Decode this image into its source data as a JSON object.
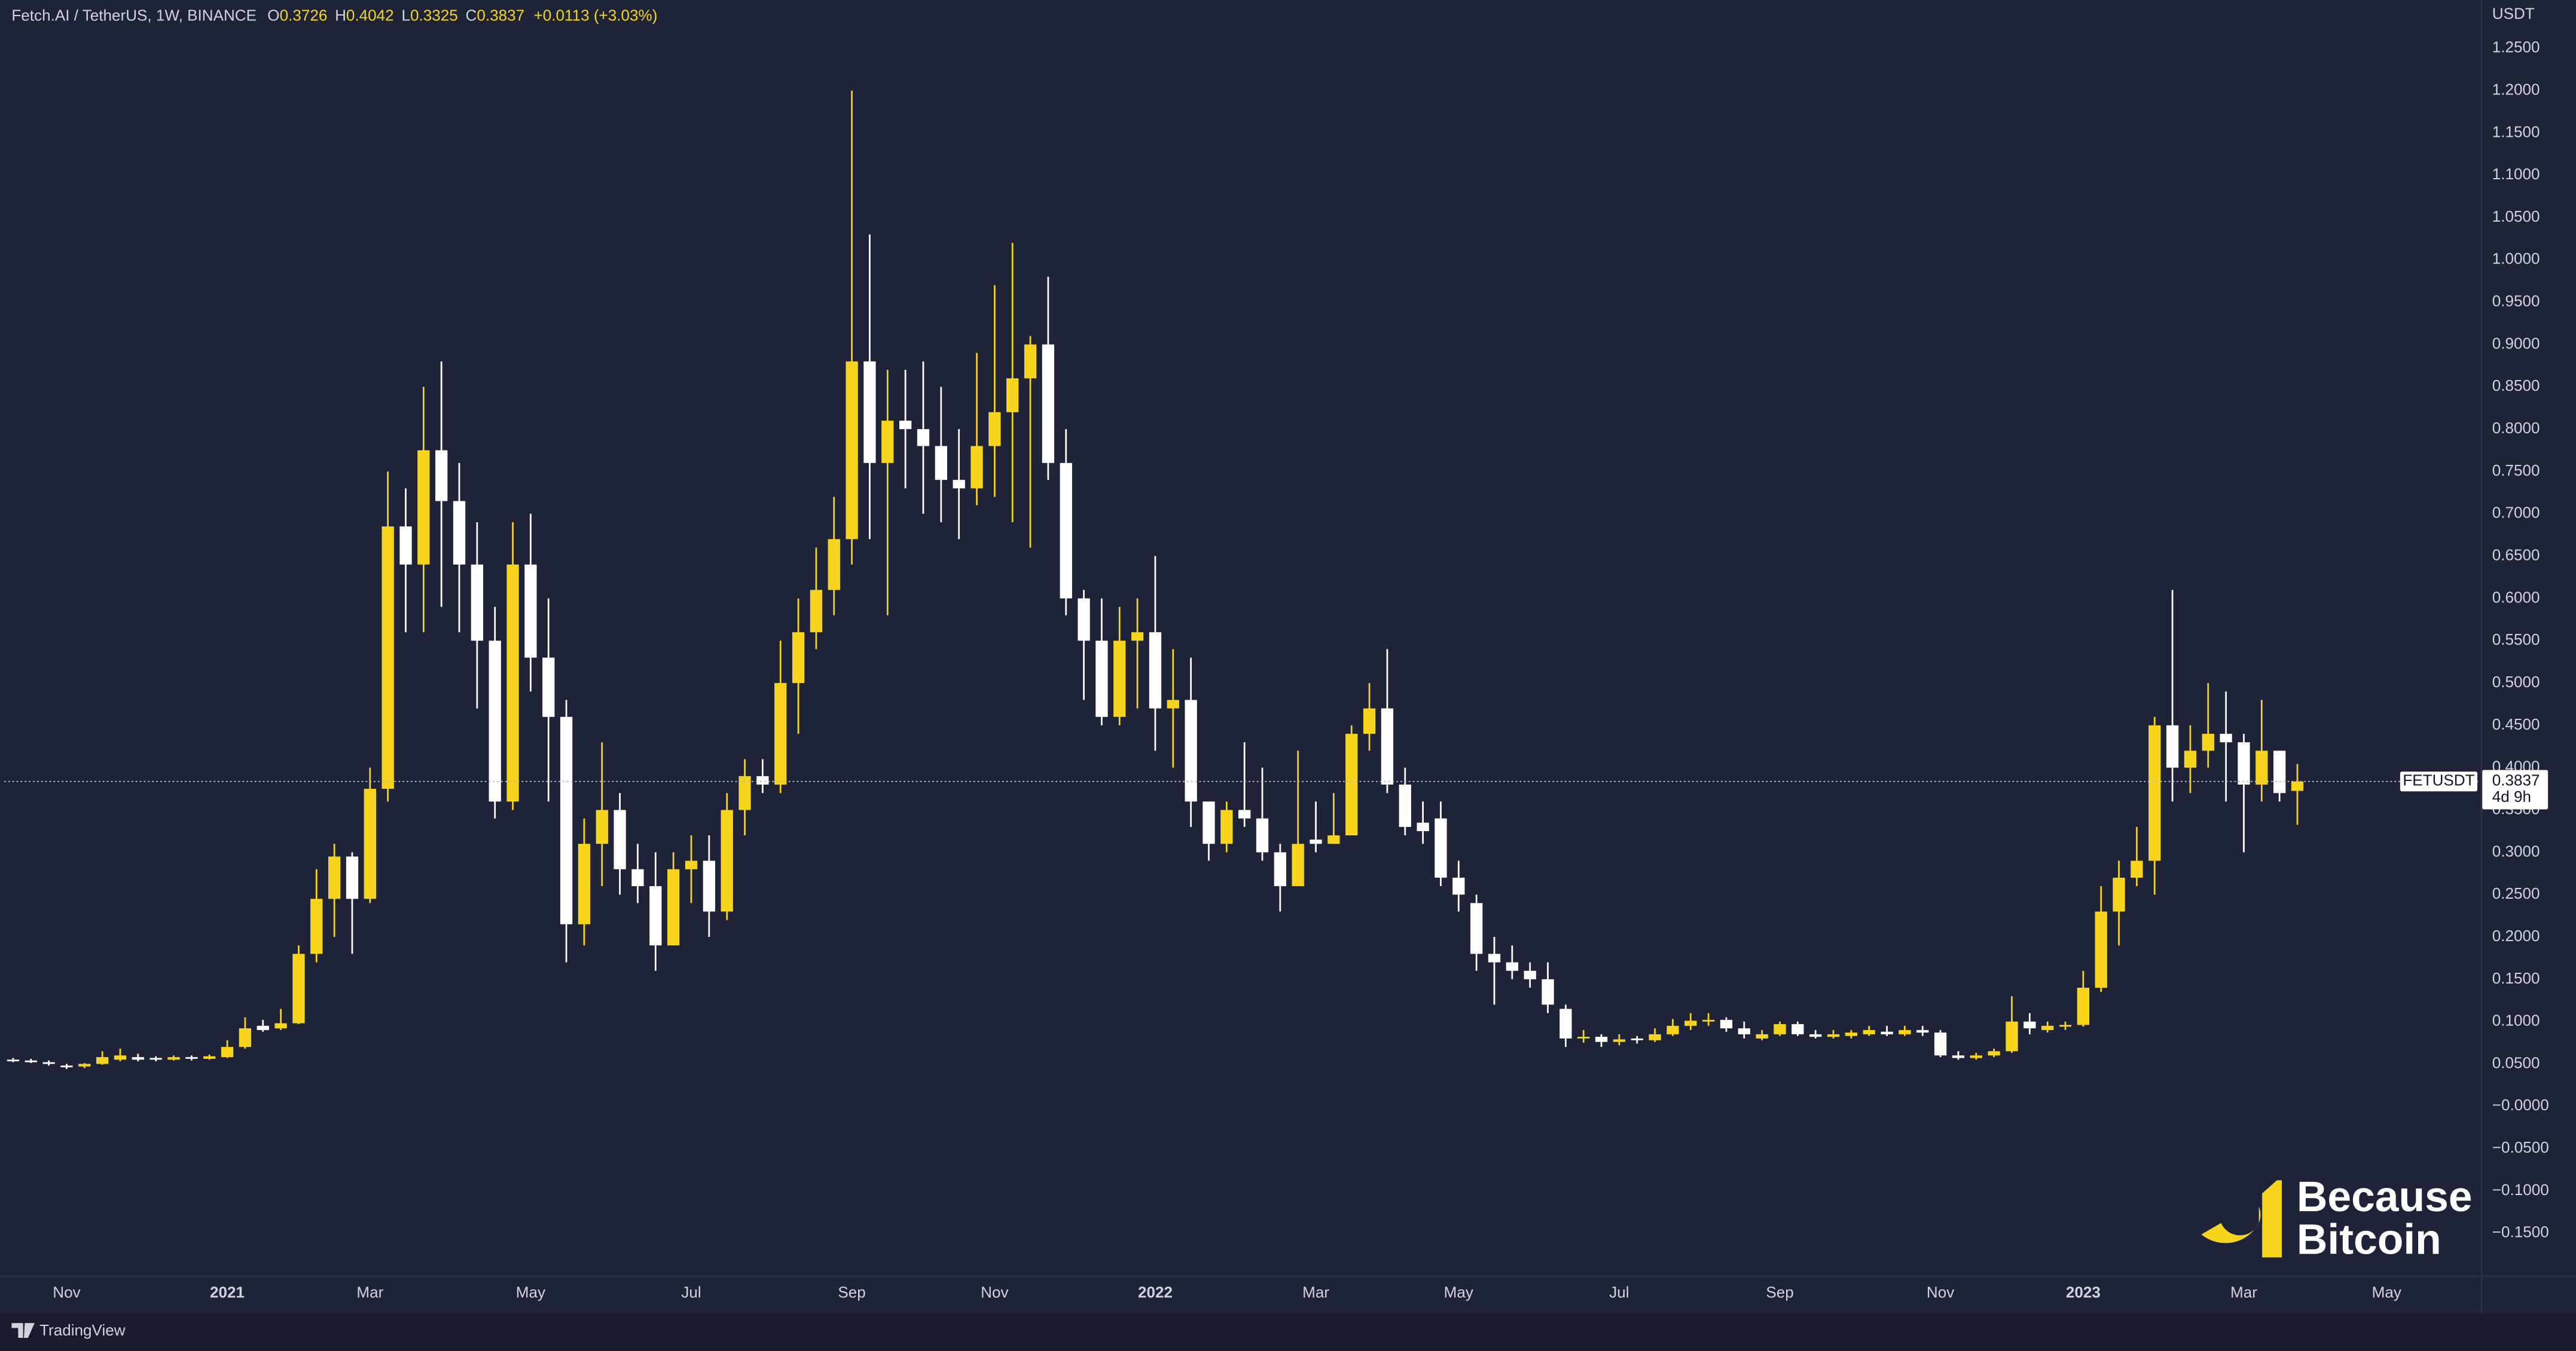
{
  "chart_data": {
    "type": "candlestick",
    "header": {
      "symbol": "Fetch.AI / TetherUS, 1W, BINANCE",
      "items": [
        {
          "key": "O",
          "value": "0.3726"
        },
        {
          "key": "H",
          "value": "0.4042"
        },
        {
          "key": "L",
          "value": "0.3325"
        },
        {
          "key": "C",
          "value": "0.3837"
        }
      ],
      "change": "+0.0113 (+3.03%)"
    },
    "y_axis_label": "USDT",
    "symbol_label": "FETUSDT",
    "countdown": "4d 9h",
    "up_color": "#f7d51c",
    "down_color": "#ffffff",
    "ylim": [
      -0.2,
      1.307
    ],
    "yticks": [
      {
        "value": 1.25,
        "label": "1.2500"
      },
      {
        "value": 1.2,
        "label": "1.2000"
      },
      {
        "value": 1.15,
        "label": "1.1500"
      },
      {
        "value": 1.1,
        "label": "1.1000"
      },
      {
        "value": 1.05,
        "label": "1.0500"
      },
      {
        "value": 1.0,
        "label": "1.0000"
      },
      {
        "value": 0.95,
        "label": "0.9500"
      },
      {
        "value": 0.9,
        "label": "0.9000"
      },
      {
        "value": 0.85,
        "label": "0.8500"
      },
      {
        "value": 0.8,
        "label": "0.8000"
      },
      {
        "value": 0.75,
        "label": "0.7500"
      },
      {
        "value": 0.7,
        "label": "0.7000"
      },
      {
        "value": 0.65,
        "label": "0.6500"
      },
      {
        "value": 0.6,
        "label": "0.6000"
      },
      {
        "value": 0.55,
        "label": "0.5500"
      },
      {
        "value": 0.5,
        "label": "0.5000"
      },
      {
        "value": 0.45,
        "label": "0.4500"
      },
      {
        "value": 0.4,
        "label": "0.4000"
      },
      {
        "value": 0.35,
        "label": "0.3500"
      },
      {
        "value": 0.3,
        "label": "0.3000"
      },
      {
        "value": 0.25,
        "label": "0.2500"
      },
      {
        "value": 0.2,
        "label": "0.2000"
      },
      {
        "value": 0.15,
        "label": "0.1500"
      },
      {
        "value": 0.1,
        "label": "0.1000"
      },
      {
        "value": 0.05,
        "label": "0.0500"
      },
      {
        "value": 0,
        "label": "−0.0000"
      },
      {
        "value": -0.05,
        "label": "−0.0500"
      },
      {
        "value": -0.1,
        "label": "−0.1000"
      },
      {
        "value": -0.15,
        "label": "−0.1500"
      }
    ],
    "categories": [
      null,
      null,
      null,
      "Nov",
      null,
      null,
      null,
      null,
      null,
      null,
      null,
      null,
      "2021",
      null,
      null,
      null,
      null,
      null,
      null,
      null,
      "Mar",
      null,
      null,
      null,
      null,
      null,
      null,
      null,
      null,
      "May",
      null,
      null,
      null,
      null,
      null,
      null,
      null,
      null,
      "Jul",
      null,
      null,
      null,
      null,
      null,
      null,
      null,
      null,
      "Sep",
      null,
      null,
      null,
      null,
      null,
      null,
      null,
      "Nov",
      null,
      null,
      null,
      null,
      null,
      null,
      null,
      null,
      "2022",
      null,
      null,
      null,
      null,
      null,
      null,
      null,
      null,
      "Mar",
      null,
      null,
      null,
      null,
      null,
      null,
      null,
      "May",
      null,
      null,
      null,
      null,
      null,
      null,
      null,
      null,
      "Jul",
      null,
      null,
      null,
      null,
      null,
      null,
      null,
      null,
      "Sep",
      null,
      null,
      null,
      null,
      null,
      null,
      null,
      null,
      "Nov",
      null,
      null,
      null,
      null,
      null,
      null,
      null,
      "2023",
      null,
      null,
      null,
      null,
      null,
      null,
      null,
      null,
      "Mar",
      null,
      null,
      null,
      null,
      null,
      null,
      null,
      "May",
      null,
      null,
      null,
      null,
      null
    ],
    "open": [
      0.055,
      0.054,
      0.052,
      0.048,
      0.047,
      0.05,
      0.055,
      0.058,
      0.057,
      0.055,
      0.058,
      0.056,
      0.058,
      0.07,
      0.095,
      0.092,
      0.098,
      0.18,
      0.245,
      0.295,
      0.245,
      0.375,
      0.685,
      0.64,
      0.775,
      0.715,
      0.64,
      0.55,
      0.36,
      0.64,
      0.53,
      0.46,
      0.215,
      0.31,
      0.35,
      0.28,
      0.26,
      0.19,
      0.28,
      0.29,
      0.23,
      0.35,
      0.39,
      0.38,
      0.5,
      0.56,
      0.61,
      0.67,
      0.88,
      0.76,
      0.81,
      0.8,
      0.78,
      0.74,
      0.73,
      0.78,
      0.82,
      0.86,
      0.9,
      0.76,
      0.6,
      0.55,
      0.46,
      0.55,
      0.56,
      0.47,
      0.48,
      0.36,
      0.31,
      0.35,
      0.34,
      0.3,
      0.26,
      0.315,
      0.31,
      0.32,
      0.44,
      0.47,
      0.38,
      0.335,
      0.34,
      0.27,
      0.24,
      0.18,
      0.17,
      0.16,
      0.15,
      0.115,
      0.08,
      0.082,
      0.076,
      0.08,
      0.078,
      0.085,
      0.095,
      0.1,
      0.102,
      0.092,
      0.08,
      0.085,
      0.097,
      0.085,
      0.082,
      0.083,
      0.085,
      0.088,
      0.085,
      0.09,
      0.087,
      0.06,
      0.057,
      0.06,
      0.065,
      0.1,
      0.09,
      0.094,
      0.096,
      0.14,
      0.23,
      0.27,
      0.29,
      0.45,
      0.4,
      0.42,
      0.44,
      0.43,
      0.38,
      0.42,
      0.3726,
      null,
      null,
      null,
      null,
      null,
      null,
      null,
      null,
      null,
      null
    ],
    "high": [
      0.057,
      0.056,
      0.054,
      0.05,
      0.051,
      0.065,
      0.068,
      0.062,
      0.059,
      0.06,
      0.06,
      0.061,
      0.078,
      0.105,
      0.102,
      0.115,
      0.19,
      0.28,
      0.31,
      0.3,
      0.4,
      0.75,
      0.73,
      0.85,
      0.88,
      0.76,
      0.69,
      0.59,
      0.69,
      0.7,
      0.6,
      0.48,
      0.34,
      0.43,
      0.37,
      0.31,
      0.3,
      0.3,
      0.32,
      0.32,
      0.37,
      0.41,
      0.41,
      0.55,
      0.6,
      0.66,
      0.72,
      1.2,
      1.03,
      0.87,
      0.87,
      0.88,
      0.85,
      0.8,
      0.89,
      0.97,
      1.02,
      0.91,
      0.98,
      0.8,
      0.61,
      0.6,
      0.59,
      0.6,
      0.65,
      0.54,
      0.53,
      0.36,
      0.36,
      0.43,
      0.4,
      0.31,
      0.42,
      0.36,
      0.37,
      0.45,
      0.5,
      0.54,
      0.4,
      0.36,
      0.36,
      0.29,
      0.25,
      0.2,
      0.19,
      0.17,
      0.17,
      0.12,
      0.09,
      0.085,
      0.085,
      0.083,
      0.092,
      0.103,
      0.11,
      0.11,
      0.105,
      0.1,
      0.09,
      0.1,
      0.1,
      0.09,
      0.09,
      0.09,
      0.095,
      0.095,
      0.095,
      0.095,
      0.09,
      0.065,
      0.063,
      0.068,
      0.13,
      0.11,
      0.1,
      0.1,
      0.16,
      0.26,
      0.29,
      0.33,
      0.46,
      0.61,
      0.45,
      0.5,
      0.49,
      0.44,
      0.48,
      0.42,
      0.4042,
      null,
      null,
      null,
      null,
      null,
      null,
      null,
      null,
      null,
      null
    ],
    "low": [
      0.052,
      0.051,
      0.048,
      0.044,
      0.045,
      0.049,
      0.053,
      0.053,
      0.053,
      0.054,
      0.054,
      0.055,
      0.057,
      0.068,
      0.088,
      0.09,
      0.097,
      0.17,
      0.2,
      0.18,
      0.24,
      0.36,
      0.56,
      0.56,
      0.59,
      0.56,
      0.47,
      0.34,
      0.35,
      0.49,
      0.36,
      0.17,
      0.19,
      0.26,
      0.25,
      0.24,
      0.16,
      0.19,
      0.24,
      0.2,
      0.22,
      0.32,
      0.37,
      0.37,
      0.44,
      0.54,
      0.58,
      0.64,
      0.67,
      0.58,
      0.73,
      0.7,
      0.69,
      0.67,
      0.71,
      0.72,
      0.69,
      0.66,
      0.74,
      0.58,
      0.48,
      0.45,
      0.45,
      0.47,
      0.42,
      0.4,
      0.33,
      0.29,
      0.3,
      0.33,
      0.29,
      0.23,
      0.26,
      0.3,
      0.31,
      0.32,
      0.42,
      0.37,
      0.32,
      0.31,
      0.26,
      0.23,
      0.16,
      0.12,
      0.15,
      0.14,
      0.11,
      0.07,
      0.075,
      0.07,
      0.072,
      0.074,
      0.076,
      0.083,
      0.09,
      0.095,
      0.088,
      0.08,
      0.078,
      0.083,
      0.083,
      0.08,
      0.08,
      0.08,
      0.083,
      0.083,
      0.083,
      0.083,
      0.058,
      0.055,
      0.055,
      0.058,
      0.063,
      0.085,
      0.087,
      0.09,
      0.094,
      0.135,
      0.19,
      0.26,
      0.25,
      0.36,
      0.37,
      0.4,
      0.36,
      0.3,
      0.36,
      0.36,
      0.3325,
      null,
      null,
      null,
      null,
      null,
      null,
      null,
      null,
      null,
      null
    ],
    "close": [
      0.054,
      0.052,
      0.05,
      0.046,
      0.05,
      0.058,
      0.06,
      0.055,
      0.055,
      0.058,
      0.056,
      0.059,
      0.07,
      0.092,
      0.09,
      0.098,
      0.18,
      0.245,
      0.295,
      0.245,
      0.375,
      0.685,
      0.64,
      0.775,
      0.715,
      0.64,
      0.55,
      0.36,
      0.64,
      0.53,
      0.46,
      0.215,
      0.31,
      0.35,
      0.28,
      0.26,
      0.19,
      0.28,
      0.29,
      0.23,
      0.35,
      0.39,
      0.38,
      0.5,
      0.56,
      0.61,
      0.67,
      0.88,
      0.76,
      0.81,
      0.8,
      0.78,
      0.74,
      0.73,
      0.78,
      0.82,
      0.86,
      0.9,
      0.76,
      0.6,
      0.55,
      0.46,
      0.55,
      0.56,
      0.47,
      0.48,
      0.36,
      0.31,
      0.35,
      0.34,
      0.3,
      0.26,
      0.31,
      0.31,
      0.32,
      0.44,
      0.47,
      0.38,
      0.33,
      0.325,
      0.27,
      0.25,
      0.18,
      0.17,
      0.16,
      0.15,
      0.12,
      0.08,
      0.082,
      0.076,
      0.079,
      0.078,
      0.085,
      0.095,
      0.101,
      0.102,
      0.092,
      0.085,
      0.085,
      0.097,
      0.085,
      0.082,
      0.085,
      0.087,
      0.09,
      0.085,
      0.09,
      0.087,
      0.06,
      0.057,
      0.06,
      0.065,
      0.1,
      0.092,
      0.095,
      0.096,
      0.14,
      0.23,
      0.27,
      0.29,
      0.45,
      0.4,
      0.42,
      0.44,
      0.43,
      0.38,
      0.42,
      0.37,
      0.3837,
      null,
      null,
      null,
      null,
      null,
      null,
      null,
      null,
      null,
      null
    ]
  },
  "branding": {
    "watermark_line1": "Because",
    "watermark_line2": "Bitcoin",
    "footer": "TradingView"
  }
}
